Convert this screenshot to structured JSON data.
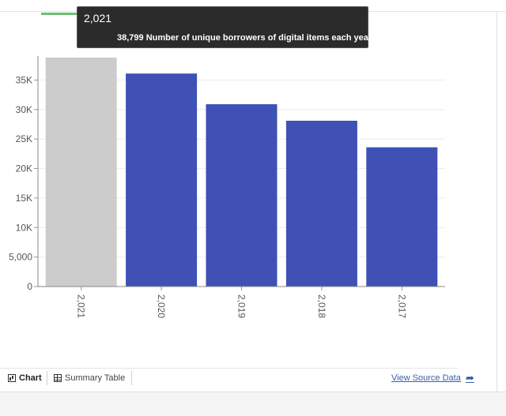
{
  "tooltip": {
    "title": "2,021",
    "value": "38,799",
    "text": "Number of unique borrowers of digital items each year.s"
  },
  "footer": {
    "tab_chart": "Chart",
    "tab_table": "Summary Table",
    "source_link": "View Source Data"
  },
  "colors": {
    "bar": "#3f51b5",
    "bar_highlight": "#cccccc",
    "tooltip_bg": "#2b2b2b",
    "link": "#3a5ea8"
  },
  "chart_data": {
    "type": "bar",
    "categories": [
      "2,021",
      "2,020",
      "2,019",
      "2,018",
      "2,017"
    ],
    "values": [
      38799,
      36100,
      30900,
      28100,
      23600
    ],
    "highlighted_index": 0,
    "ylim": [
      0,
      38799
    ],
    "yticks": [
      0,
      5000,
      10000,
      15000,
      20000,
      25000,
      30000,
      35000
    ],
    "ytick_labels": [
      "0",
      "5,000",
      "10K",
      "15K",
      "20K",
      "25K",
      "30K",
      "35K"
    ],
    "grid": true,
    "xlabel": "",
    "ylabel": ""
  }
}
